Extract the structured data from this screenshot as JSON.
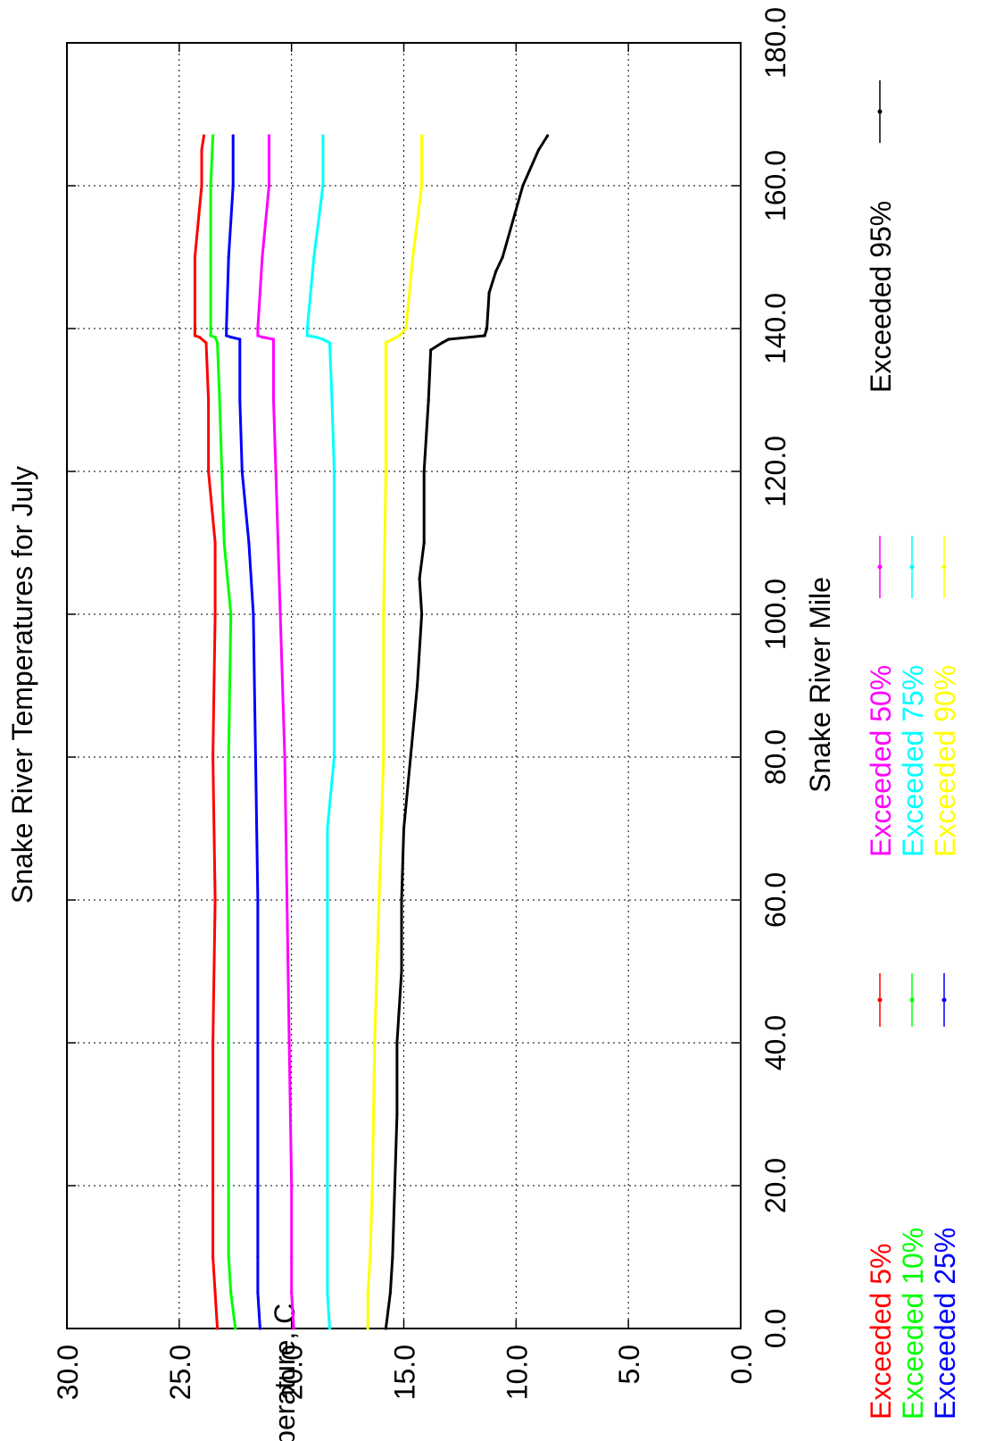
{
  "chart_data": {
    "type": "line",
    "title": "Snake River Temperatures for July",
    "xlabel": "Snake River Mile",
    "ylabel": "Temperature, C",
    "xlim": [
      0,
      180
    ],
    "ylim": [
      0,
      30
    ],
    "x_ticks": [
      "0.0",
      "20.0",
      "40.0",
      "60.0",
      "80.0",
      "100.0",
      "120.0",
      "140.0",
      "160.0",
      "180.0"
    ],
    "y_ticks": [
      "0.0",
      "5.0",
      "10.0",
      "15.0",
      "20.0",
      "25.0",
      "30.0"
    ],
    "grid": true,
    "legend_placement": "below",
    "series": [
      {
        "name": "Exceeded 5%",
        "color": "#ff0000",
        "x": [
          0,
          5,
          10,
          20,
          40,
          60,
          80,
          100,
          110,
          120,
          130,
          138,
          138.8,
          139,
          140,
          150,
          160,
          165,
          167
        ],
        "y": [
          23.3,
          23.4,
          23.5,
          23.5,
          23.5,
          23.4,
          23.5,
          23.4,
          23.4,
          23.7,
          23.7,
          23.8,
          24.1,
          24.3,
          24.3,
          24.3,
          24.0,
          24.0,
          23.9
        ]
      },
      {
        "name": "Exceeded 10%",
        "color": "#00ff00",
        "x": [
          0,
          5,
          10,
          20,
          40,
          60,
          80,
          100,
          110,
          120,
          130,
          138,
          138.8,
          139,
          140,
          150,
          160,
          167
        ],
        "y": [
          22.5,
          22.7,
          22.8,
          22.8,
          22.8,
          22.8,
          22.8,
          22.7,
          23.0,
          23.1,
          23.2,
          23.3,
          23.4,
          23.6,
          23.6,
          23.6,
          23.6,
          23.5
        ]
      },
      {
        "name": "Exceeded 25%",
        "color": "#0000ff",
        "x": [
          0,
          5,
          10,
          20,
          40,
          60,
          80,
          100,
          110,
          120,
          130,
          138.5,
          138.8,
          139,
          140,
          150,
          160,
          167
        ],
        "y": [
          21.4,
          21.5,
          21.5,
          21.5,
          21.5,
          21.5,
          21.6,
          21.7,
          21.9,
          22.2,
          22.3,
          22.3,
          22.7,
          22.9,
          22.9,
          22.8,
          22.6,
          22.6
        ]
      },
      {
        "name": "Exceeded 50%",
        "color": "#ff00ff",
        "x": [
          0,
          5,
          10,
          20,
          40,
          60,
          80,
          100,
          110,
          120,
          130,
          138.5,
          138.8,
          139,
          140,
          150,
          160,
          167
        ],
        "y": [
          19.9,
          20.0,
          20.0,
          20.0,
          20.1,
          20.2,
          20.3,
          20.5,
          20.6,
          20.7,
          20.8,
          20.8,
          21.3,
          21.5,
          21.5,
          21.3,
          21.0,
          21.0
        ]
      },
      {
        "name": "Exceeded 75%",
        "color": "#00ffff",
        "x": [
          0,
          5,
          10,
          20,
          40,
          60,
          70,
          80,
          100,
          120,
          130,
          138,
          138.5,
          138.8,
          139,
          140,
          150,
          160,
          167
        ],
        "y": [
          18.3,
          18.4,
          18.4,
          18.4,
          18.4,
          18.4,
          18.4,
          18.1,
          18.1,
          18.1,
          18.2,
          18.3,
          18.6,
          18.9,
          19.3,
          19.3,
          19.0,
          18.6,
          18.6
        ]
      },
      {
        "name": "Exceeded 90%",
        "color": "#ffff00",
        "x": [
          0,
          5,
          10,
          20,
          40,
          60,
          80,
          100,
          120,
          130,
          138,
          138.5,
          139,
          140,
          150,
          160,
          167
        ],
        "y": [
          16.6,
          16.6,
          16.5,
          16.4,
          16.3,
          16.1,
          15.9,
          15.9,
          15.8,
          15.8,
          15.8,
          15.5,
          15.2,
          14.9,
          14.6,
          14.2,
          14.2
        ]
      },
      {
        "name": "Exceeded 95%",
        "color": "#000000",
        "x": [
          0,
          5,
          10,
          20,
          30,
          40,
          50,
          60,
          70,
          80,
          90,
          100,
          105,
          110,
          120,
          130,
          137,
          138,
          138.5,
          139,
          140,
          145,
          148,
          150,
          160,
          165,
          167
        ],
        "y": [
          15.8,
          15.6,
          15.5,
          15.4,
          15.3,
          15.3,
          15.1,
          15.1,
          15.0,
          14.7,
          14.4,
          14.2,
          14.3,
          14.1,
          14.1,
          13.9,
          13.8,
          13.3,
          13.0,
          11.4,
          11.3,
          11.2,
          10.9,
          10.6,
          9.7,
          9.0,
          8.6
        ]
      }
    ]
  }
}
